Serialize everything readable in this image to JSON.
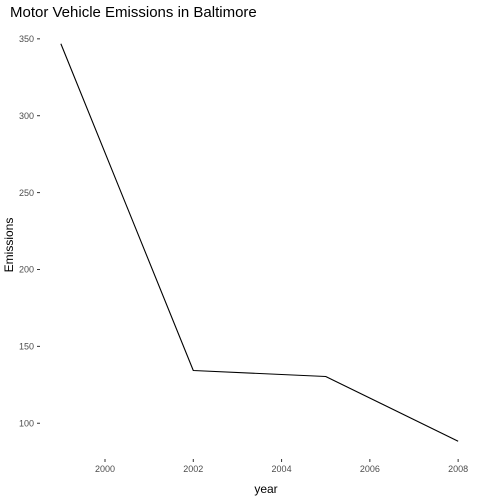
{
  "chart_data": {
    "type": "line",
    "title": "Motor Vehicle Emissions in Baltimore",
    "xlabel": "year",
    "ylabel": "Emissions",
    "x": [
      1999,
      2002,
      2005,
      2008
    ],
    "y": [
      346.8,
      134.3,
      130.4,
      88.3
    ],
    "xlim": [
      1998.55,
      2008.45
    ],
    "ylim": [
      77.4,
      357.7
    ],
    "xticks": [
      2000,
      2002,
      2004,
      2006,
      2008
    ],
    "yticks": [
      100,
      150,
      200,
      250,
      300,
      350
    ],
    "grid": false,
    "line_color": "#000000"
  }
}
